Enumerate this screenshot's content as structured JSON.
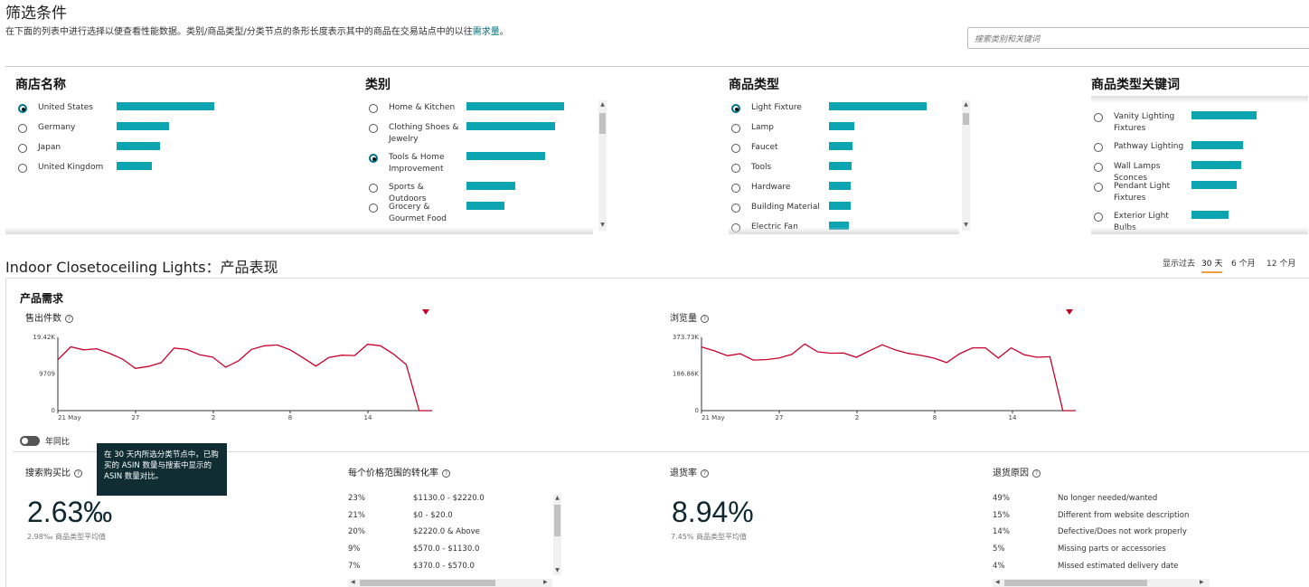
{
  "filter": {
    "title": "筛选条件",
    "description": "在下面的列表中进行选择以便查看性能数据。类别/商品类型/分类节点的条形长度表示其中的商品在交易站点中的以往",
    "description_link": "需求量",
    "description_end": "。",
    "search_placeholder": "搜索类别和关键词"
  },
  "columns": {
    "store": {
      "title": "商店名称",
      "items": [
        {
          "label": "United States",
          "selected": true,
          "bar": 1.0
        },
        {
          "label": "Germany",
          "selected": false,
          "bar": 0.54
        },
        {
          "label": "Japan",
          "selected": false,
          "bar": 0.44
        },
        {
          "label": "United Kingdom",
          "selected": false,
          "bar": 0.36
        }
      ]
    },
    "category": {
      "title": "类别",
      "items": [
        {
          "label": "Home & Kitchen",
          "selected": false,
          "bar": 1.0
        },
        {
          "label": "Clothing Shoes & Jewelry",
          "selected": false,
          "bar": 0.91
        },
        {
          "label": "Tools & Home Improvement",
          "selected": true,
          "bar": 0.81
        },
        {
          "label": "Sports & Outdoors",
          "selected": false,
          "bar": 0.5
        },
        {
          "label": "Grocery & Gourmet Food",
          "selected": false,
          "bar": 0.39
        }
      ]
    },
    "product_type": {
      "title": "商品类型",
      "items": [
        {
          "label": "Light Fixture",
          "selected": true,
          "bar": 1.0
        },
        {
          "label": "Lamp",
          "selected": false,
          "bar": 0.26
        },
        {
          "label": "Faucet",
          "selected": false,
          "bar": 0.24
        },
        {
          "label": "Tools",
          "selected": false,
          "bar": 0.23
        },
        {
          "label": "Hardware",
          "selected": false,
          "bar": 0.22
        },
        {
          "label": "Building Material",
          "selected": false,
          "bar": 0.22
        },
        {
          "label": "Electric Fan",
          "selected": false,
          "bar": 0.2
        }
      ]
    },
    "keywords": {
      "title": "商品类型关键词",
      "items": [
        {
          "label": "Vanity Lighting Fixtures",
          "selected": false,
          "bar": 1.0
        },
        {
          "label": "Pathway Lighting",
          "selected": false,
          "bar": 0.79
        },
        {
          "label": "Wall Lamps Sconces",
          "selected": false,
          "bar": 0.76
        },
        {
          "label": "Pendant Light Fixtures",
          "selected": false,
          "bar": 0.69
        },
        {
          "label": "Exterior Light Bulbs",
          "selected": false,
          "bar": 0.57
        }
      ]
    }
  },
  "performance": {
    "title": "Indoor Closetoceiling Lights：产品表现",
    "range_label": "显示过去",
    "ranges": [
      "30 天",
      "6 个月",
      "12 个月"
    ],
    "selected_range": "30 天",
    "demand_title": "产品需求",
    "yoy_label": "年同比",
    "tooltip": "在 30 天内所选分类节点中，已购买的 ASIN 数量与搜索中显示的 ASIN 数量对比。"
  },
  "chart_data": [
    {
      "type": "line",
      "title": "售出件数",
      "ylim": [
        0,
        19420
      ],
      "y_ticks": [
        "19.42K",
        "9709",
        "0"
      ],
      "x_ticks": [
        "21 May",
        "27",
        "2",
        "8",
        "14"
      ],
      "color": "#c7002b",
      "values": [
        13500,
        16900,
        16100,
        16400,
        15200,
        13700,
        11200,
        11700,
        12700,
        16600,
        16200,
        14800,
        14200,
        11500,
        13200,
        16200,
        17200,
        17400,
        16100,
        14000,
        11800,
        14100,
        14700,
        14600,
        17600,
        17200,
        15000,
        12200,
        0,
        0
      ]
    },
    {
      "type": "line",
      "title": "浏览量",
      "ylim": [
        0,
        373730
      ],
      "y_ticks": [
        "373.73K",
        "186.86K",
        "0"
      ],
      "x_ticks": [
        "21 May",
        "27",
        "2",
        "8",
        "14"
      ],
      "color": "#c7002b",
      "values": [
        325000,
        305000,
        280000,
        290000,
        258000,
        260000,
        268000,
        287000,
        340000,
        300000,
        293000,
        294000,
        272000,
        305000,
        336000,
        310000,
        292000,
        282000,
        268000,
        245000,
        290000,
        320000,
        320000,
        268000,
        320000,
        285000,
        272000,
        275000,
        0,
        0
      ]
    }
  ],
  "metrics": {
    "search_purchase": {
      "label": "搜索购买比",
      "value": "2.63‰",
      "avg": "2.98‰ 商品类型平均值"
    },
    "conversion": {
      "label": "每个价格范围的转化率",
      "rows": [
        {
          "pct": "23%",
          "range": "$1130.0 - $2220.0"
        },
        {
          "pct": "21%",
          "range": "$0 - $20.0"
        },
        {
          "pct": "20%",
          "range": "$2220.0 & Above"
        },
        {
          "pct": "9%",
          "range": "$570.0 - $1130.0"
        },
        {
          "pct": "7%",
          "range": "$370.0 - $570.0"
        }
      ]
    },
    "return_rate": {
      "label": "退货率",
      "value": "8.94%",
      "avg": "7.45% 商品类型平均值"
    },
    "return_reasons": {
      "label": "退货原因",
      "rows": [
        {
          "pct": "49%",
          "reason": "No longer needed/wanted"
        },
        {
          "pct": "15%",
          "reason": "Different from website description"
        },
        {
          "pct": "14%",
          "reason": "Defective/Does not work properly"
        },
        {
          "pct": "5%",
          "reason": "Missing parts or accessories"
        },
        {
          "pct": "4%",
          "reason": "Missed estimated delivery date"
        }
      ]
    }
  },
  "colors": {
    "bar": "#0ca4b0",
    "line": "#c7002b",
    "accent": "#f0a040"
  }
}
